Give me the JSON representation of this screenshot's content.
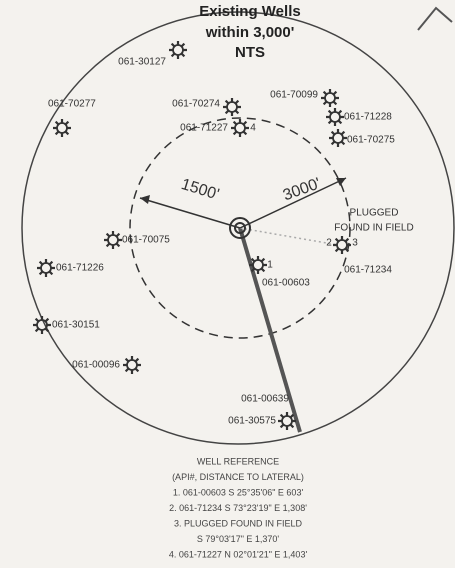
{
  "title": [
    "Existing Wells",
    "within 3,000'",
    "NTS"
  ],
  "radius_labels": [
    "1500'",
    "3000'"
  ],
  "plugged_note": [
    "PLUGGED",
    "FOUND IN FIELD"
  ],
  "wells": [
    {
      "label": "061-30127"
    },
    {
      "label": "061-70274"
    },
    {
      "label": "061-70099"
    },
    {
      "label": "061-71228"
    },
    {
      "label": "061-71227",
      "tag": "4"
    },
    {
      "label": "061-70275"
    },
    {
      "label": "061-70277"
    },
    {
      "label": "061-70075"
    },
    {
      "label": "061-71226"
    },
    {
      "label": "061-30151"
    },
    {
      "label": "061-00096"
    },
    {
      "label": "061-00603",
      "tag": "1"
    },
    {
      "label": "061-71234",
      "tag": "2",
      "tag2": "3"
    },
    {
      "label": "061-00639"
    },
    {
      "label": "061-30575"
    }
  ],
  "reference": [
    "WELL REFERENCE",
    "(API#, DISTANCE TO LATERAL)",
    "1. 061-00603 S 25°35'06\" E  603'",
    "2. 061-71234 S 73°23'19\" E 1,308'",
    "3. PLUGGED FOUND IN FIELD",
    "S 79°03'17\" E  1,370'",
    "4. 061-71227 N 02°01'21\" E  1,403'"
  ]
}
